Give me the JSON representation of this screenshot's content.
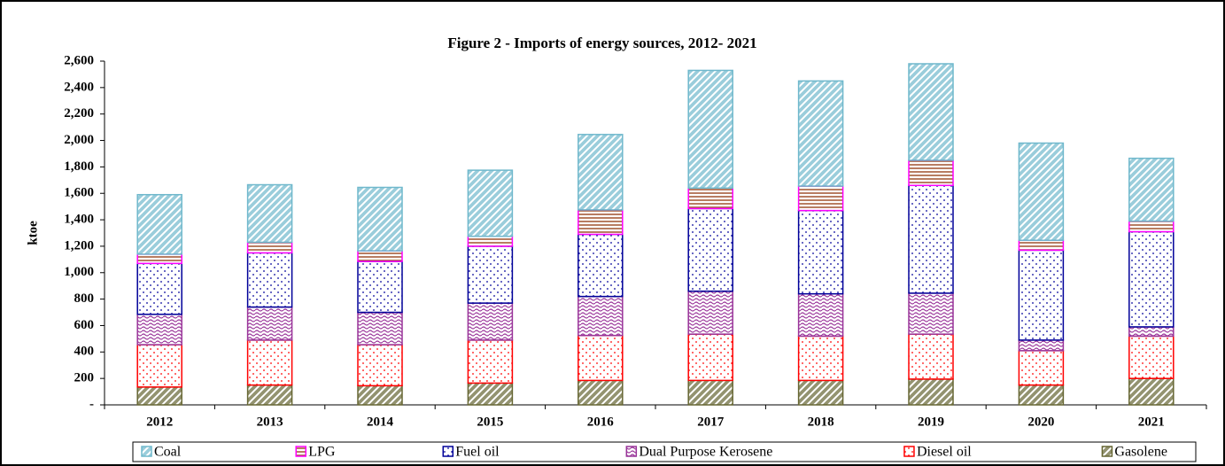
{
  "chart_data": {
    "type": "bar",
    "stacked": true,
    "title": "Figure 2 - Imports of energy sources, 2012- 2021",
    "y_label": "ktoe",
    "categories": [
      "2012",
      "2013",
      "2014",
      "2015",
      "2016",
      "2017",
      "2018",
      "2019",
      "2020",
      "2021"
    ],
    "series": [
      {
        "name": "Coal",
        "color": "#6fb8cc",
        "hatch": "diagonal",
        "values": [
          450,
          435,
          480,
          500,
          570,
          890,
          795,
          730,
          735,
          475
        ]
      },
      {
        "name": "LPG",
        "color": "#ff00ff",
        "hatch": "horizontal",
        "values": [
          70,
          80,
          80,
          75,
          185,
          155,
          185,
          190,
          75,
          80
        ]
      },
      {
        "name": "Fuel oil",
        "color": "#000099",
        "hatch": "dots",
        "values": [
          385,
          410,
          385,
          430,
          470,
          625,
          630,
          815,
          680,
          720
        ]
      },
      {
        "name": "Dual Purpose Kerosene",
        "color": "#993399",
        "hatch": "wave",
        "values": [
          230,
          250,
          245,
          280,
          295,
          325,
          320,
          310,
          80,
          70
        ]
      },
      {
        "name": "Diesel oil",
        "color": "#ff0000",
        "hatch": "dots",
        "values": [
          320,
          340,
          310,
          325,
          340,
          350,
          335,
          340,
          260,
          320
        ]
      },
      {
        "name": "Gasolene",
        "color": "#666633",
        "hatch": "diagonal",
        "values": [
          135,
          150,
          145,
          165,
          185,
          185,
          185,
          195,
          150,
          200
        ]
      }
    ],
    "ylim": [
      0,
      2600
    ],
    "yticks": [
      {
        "value": 0,
        "label": "-"
      },
      200,
      400,
      600,
      800,
      {
        "value": 1000,
        "label": "1,000"
      },
      {
        "value": 1200,
        "label": "1,200"
      },
      {
        "value": 1400,
        "label": "1,400"
      },
      {
        "value": 1600,
        "label": "1,600"
      },
      {
        "value": 1800,
        "label": "1,800"
      },
      {
        "value": 2000,
        "label": "2,000"
      },
      {
        "value": 2200,
        "label": "2,200"
      },
      {
        "value": 2400,
        "label": "2,400"
      },
      {
        "value": 2600,
        "label": "2,600"
      }
    ],
    "grid": false,
    "legend": "bottom"
  }
}
